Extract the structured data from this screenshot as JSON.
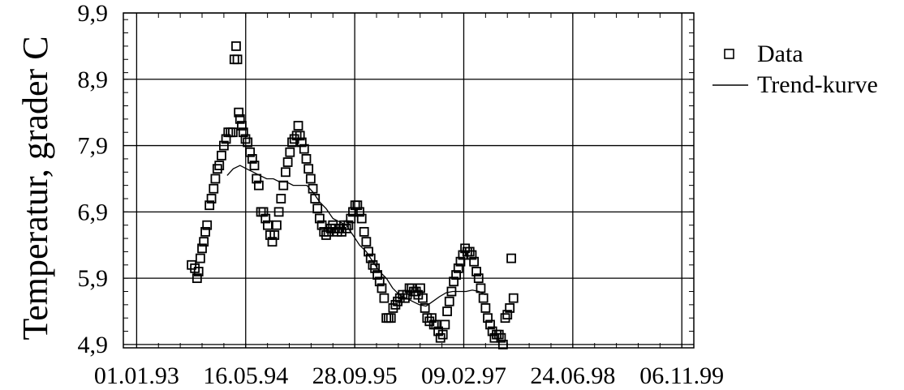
{
  "chart_data": {
    "type": "scatter",
    "title": "",
    "xlabel": "",
    "ylabel": "Temperatur, grader C",
    "x_tick_labels": [
      "01.01.93",
      "16.05.94",
      "28.09.95",
      "09.02.97",
      "24.06.98",
      "06.11.99"
    ],
    "x_ticks": [
      "1993-01-01",
      "1994-05-16",
      "1995-09-28",
      "1997-02-09",
      "1998-06-24",
      "1999-11-06"
    ],
    "xlim": [
      "1992-11-01",
      "1999-12-31"
    ],
    "y_tick_labels": [
      "4,9",
      "5,9",
      "6,9",
      "7,9",
      "8,9",
      "9,9"
    ],
    "y_ticks": [
      4.9,
      5.9,
      6.9,
      7.9,
      8.9,
      9.9
    ],
    "ylim": [
      4.85,
      9.9
    ],
    "grid": true,
    "legend_position": "right",
    "series": [
      {
        "name": "Data",
        "marker": "open-square",
        "color": "#000000",
        "points": [
          [
            "1993-09-10",
            6.1
          ],
          [
            "1993-09-25",
            6.05
          ],
          [
            "1993-10-05",
            5.9
          ],
          [
            "1993-10-12",
            6.0
          ],
          [
            "1993-10-20",
            6.2
          ],
          [
            "1993-10-28",
            6.35
          ],
          [
            "1993-11-05",
            6.45
          ],
          [
            "1993-11-12",
            6.6
          ],
          [
            "1993-11-20",
            6.7
          ],
          [
            "1993-12-01",
            7.0
          ],
          [
            "1993-12-10",
            7.1
          ],
          [
            "1993-12-20",
            7.25
          ],
          [
            "1993-12-28",
            7.4
          ],
          [
            "1994-01-06",
            7.55
          ],
          [
            "1994-01-15",
            7.6
          ],
          [
            "1994-01-25",
            7.75
          ],
          [
            "1994-02-05",
            7.9
          ],
          [
            "1994-02-15",
            8.0
          ],
          [
            "1994-02-25",
            8.1
          ],
          [
            "1994-03-08",
            8.1
          ],
          [
            "1994-03-18",
            8.1
          ],
          [
            "1994-03-25",
            9.2
          ],
          [
            "1994-04-02",
            9.4
          ],
          [
            "1994-04-08",
            9.2
          ],
          [
            "1994-04-14",
            8.4
          ],
          [
            "1994-04-20",
            8.3
          ],
          [
            "1994-04-28",
            8.2
          ],
          [
            "1994-05-05",
            8.1
          ],
          [
            "1994-05-15",
            8.0
          ],
          [
            "1994-05-25",
            7.95
          ],
          [
            "1994-06-05",
            7.8
          ],
          [
            "1994-06-15",
            7.7
          ],
          [
            "1994-06-25",
            7.6
          ],
          [
            "1994-07-05",
            7.4
          ],
          [
            "1994-07-15",
            7.3
          ],
          [
            "1994-07-25",
            6.9
          ],
          [
            "1994-08-05",
            6.9
          ],
          [
            "1994-08-15",
            6.8
          ],
          [
            "1994-08-25",
            6.7
          ],
          [
            "1994-09-05",
            6.55
          ],
          [
            "1994-09-15",
            6.45
          ],
          [
            "1994-09-25",
            6.55
          ],
          [
            "1994-10-05",
            6.7
          ],
          [
            "1994-10-15",
            6.9
          ],
          [
            "1994-10-25",
            7.1
          ],
          [
            "1994-11-05",
            7.3
          ],
          [
            "1994-11-15",
            7.5
          ],
          [
            "1994-11-25",
            7.65
          ],
          [
            "1994-12-05",
            7.8
          ],
          [
            "1994-12-15",
            7.95
          ],
          [
            "1994-12-25",
            8.0
          ],
          [
            "1995-01-05",
            8.05
          ],
          [
            "1995-01-12",
            8.2
          ],
          [
            "1995-01-20",
            8.05
          ],
          [
            "1995-01-28",
            7.95
          ],
          [
            "1995-02-08",
            7.85
          ],
          [
            "1995-02-18",
            7.7
          ],
          [
            "1995-02-28",
            7.55
          ],
          [
            "1995-03-10",
            7.4
          ],
          [
            "1995-03-20",
            7.25
          ],
          [
            "1995-03-30",
            7.1
          ],
          [
            "1995-04-10",
            6.95
          ],
          [
            "1995-04-20",
            6.8
          ],
          [
            "1995-04-30",
            6.7
          ],
          [
            "1995-05-10",
            6.6
          ],
          [
            "1995-05-20",
            6.55
          ],
          [
            "1995-05-30",
            6.6
          ],
          [
            "1995-06-10",
            6.65
          ],
          [
            "1995-06-20",
            6.7
          ],
          [
            "1995-06-30",
            6.65
          ],
          [
            "1995-07-10",
            6.6
          ],
          [
            "1995-07-20",
            6.65
          ],
          [
            "1995-07-30",
            6.6
          ],
          [
            "1995-08-10",
            6.7
          ],
          [
            "1995-08-20",
            6.65
          ],
          [
            "1995-08-30",
            6.7
          ],
          [
            "1995-09-10",
            6.8
          ],
          [
            "1995-09-20",
            6.9
          ],
          [
            "1995-09-30",
            7.0
          ],
          [
            "1995-10-10",
            7.0
          ],
          [
            "1995-10-20",
            6.9
          ],
          [
            "1995-10-30",
            6.8
          ],
          [
            "1995-11-10",
            6.6
          ],
          [
            "1995-11-20",
            6.45
          ],
          [
            "1995-11-30",
            6.3
          ],
          [
            "1995-12-10",
            6.2
          ],
          [
            "1995-12-20",
            6.1
          ],
          [
            "1995-12-30",
            6.05
          ],
          [
            "1996-01-10",
            5.95
          ],
          [
            "1996-01-20",
            5.85
          ],
          [
            "1996-01-30",
            5.75
          ],
          [
            "1996-02-10",
            5.6
          ],
          [
            "1996-02-20",
            5.3
          ],
          [
            "1996-03-01",
            5.3
          ],
          [
            "1996-03-12",
            5.3
          ],
          [
            "1996-03-22",
            5.45
          ],
          [
            "1996-04-02",
            5.5
          ],
          [
            "1996-04-12",
            5.55
          ],
          [
            "1996-04-22",
            5.6
          ],
          [
            "1996-05-05",
            5.65
          ],
          [
            "1996-05-15",
            5.6
          ],
          [
            "1996-05-25",
            5.65
          ],
          [
            "1996-06-05",
            5.75
          ],
          [
            "1996-06-15",
            5.75
          ],
          [
            "1996-06-25",
            5.7
          ],
          [
            "1996-07-05",
            5.7
          ],
          [
            "1996-07-15",
            5.65
          ],
          [
            "1996-07-25",
            5.75
          ],
          [
            "1996-08-05",
            5.6
          ],
          [
            "1996-08-15",
            5.45
          ],
          [
            "1996-08-25",
            5.3
          ],
          [
            "1996-09-05",
            5.25
          ],
          [
            "1996-09-15",
            5.3
          ],
          [
            "1996-09-25",
            5.2
          ],
          [
            "1996-10-05",
            5.2
          ],
          [
            "1996-10-15",
            5.1
          ],
          [
            "1996-10-25",
            5.0
          ],
          [
            "1996-11-05",
            5.05
          ],
          [
            "1996-11-15",
            5.2
          ],
          [
            "1996-11-25",
            5.4
          ],
          [
            "1996-12-05",
            5.55
          ],
          [
            "1996-12-15",
            5.7
          ],
          [
            "1996-12-25",
            5.85
          ],
          [
            "1997-01-05",
            5.95
          ],
          [
            "1997-01-15",
            6.05
          ],
          [
            "1997-01-25",
            6.15
          ],
          [
            "1997-02-05",
            6.25
          ],
          [
            "1997-02-15",
            6.35
          ],
          [
            "1997-02-25",
            6.3
          ],
          [
            "1997-03-08",
            6.3
          ],
          [
            "1997-03-18",
            6.25
          ],
          [
            "1997-03-28",
            6.15
          ],
          [
            "1997-04-08",
            6.0
          ],
          [
            "1997-04-18",
            5.9
          ],
          [
            "1997-04-28",
            5.75
          ],
          [
            "1997-05-10",
            5.6
          ],
          [
            "1997-05-20",
            5.45
          ],
          [
            "1997-05-30",
            5.3
          ],
          [
            "1997-06-10",
            5.2
          ],
          [
            "1997-06-20",
            5.1
          ],
          [
            "1997-06-30",
            5.0
          ],
          [
            "1997-07-10",
            5.05
          ],
          [
            "1997-07-20",
            5.05
          ],
          [
            "1997-07-30",
            5.0
          ],
          [
            "1997-08-08",
            4.9
          ],
          [
            "1997-08-18",
            5.3
          ],
          [
            "1997-08-28",
            5.35
          ],
          [
            "1997-09-08",
            5.45
          ],
          [
            "1997-09-15",
            6.2
          ],
          [
            "1997-09-25",
            5.6
          ]
        ]
      },
      {
        "name": "Trend-kurve",
        "style": "line",
        "color": "#000000",
        "points": [
          [
            "1994-02-20",
            7.45
          ],
          [
            "1994-03-20",
            7.55
          ],
          [
            "1994-04-20",
            7.6
          ],
          [
            "1994-05-20",
            7.55
          ],
          [
            "1994-06-20",
            7.5
          ],
          [
            "1994-07-20",
            7.45
          ],
          [
            "1994-08-20",
            7.4
          ],
          [
            "1994-09-20",
            7.4
          ],
          [
            "1994-10-20",
            7.35
          ],
          [
            "1994-11-20",
            7.35
          ],
          [
            "1994-12-20",
            7.3
          ],
          [
            "1995-01-20",
            7.3
          ],
          [
            "1995-02-20",
            7.3
          ],
          [
            "1995-03-20",
            7.2
          ],
          [
            "1995-04-20",
            7.05
          ],
          [
            "1995-05-20",
            6.95
          ],
          [
            "1995-06-20",
            6.8
          ],
          [
            "1995-07-20",
            6.75
          ],
          [
            "1995-08-20",
            6.7
          ],
          [
            "1995-09-20",
            6.55
          ],
          [
            "1995-10-20",
            6.4
          ],
          [
            "1995-11-20",
            6.3
          ],
          [
            "1995-12-20",
            6.15
          ],
          [
            "1996-01-20",
            6.0
          ],
          [
            "1996-02-20",
            5.9
          ],
          [
            "1996-03-20",
            5.75
          ],
          [
            "1996-04-20",
            5.65
          ],
          [
            "1996-05-20",
            5.6
          ],
          [
            "1996-06-20",
            5.55
          ],
          [
            "1996-07-20",
            5.5
          ],
          [
            "1996-08-20",
            5.48
          ],
          [
            "1996-09-20",
            5.55
          ],
          [
            "1996-10-20",
            5.62
          ],
          [
            "1996-11-20",
            5.68
          ],
          [
            "1996-12-20",
            5.7
          ],
          [
            "1997-01-20",
            5.7
          ],
          [
            "1997-02-20",
            5.7
          ],
          [
            "1997-03-20",
            5.72
          ],
          [
            "1997-04-20",
            5.7
          ],
          [
            "1997-05-20",
            5.65
          ]
        ]
      }
    ]
  }
}
